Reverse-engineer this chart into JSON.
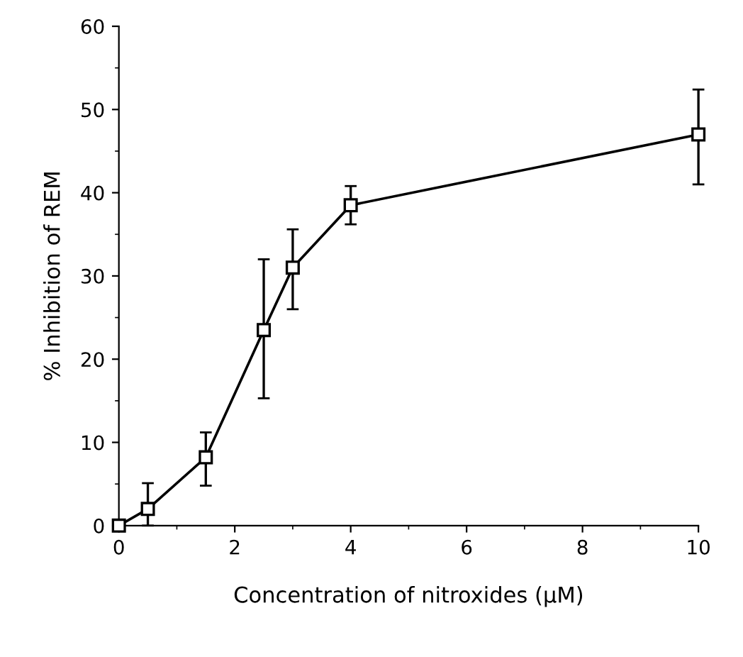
{
  "chart_data": {
    "type": "line",
    "xlabel": "Concentration of nitroxides (μM)",
    "ylabel": "% Inhibition of REM",
    "x": [
      0,
      0.5,
      1.5,
      2.5,
      3,
      4,
      10
    ],
    "series": [
      {
        "color": "#000000",
        "values": [
          0,
          2,
          8.2,
          23.5,
          31,
          38.5,
          47
        ],
        "errors": [
          null,
          [
            0,
            5.1
          ],
          [
            4.8,
            11.2
          ],
          [
            15.3,
            32
          ],
          [
            26,
            35.6
          ],
          [
            36.2,
            40.8
          ],
          [
            41,
            52.4
          ]
        ]
      }
    ],
    "xlim": [
      0,
      10
    ],
    "ylim": [
      0,
      60
    ],
    "xticks": [
      0,
      {
        "value": 1,
        "label": null
      },
      2,
      {
        "value": 3,
        "label": null
      },
      4,
      {
        "value": 5,
        "label": null
      },
      6,
      {
        "value": 7,
        "label": null
      },
      8,
      {
        "value": 9,
        "label": null
      },
      10
    ],
    "yticks": [
      0,
      {
        "value": 5,
        "label": null
      },
      10,
      {
        "value": 15,
        "label": null
      },
      20,
      {
        "value": 25,
        "label": null
      },
      30,
      {
        "value": 35,
        "label": null
      },
      40,
      {
        "value": 45,
        "label": null
      },
      50,
      {
        "value": 55,
        "label": null
      },
      60
    ],
    "marker": "square",
    "line_style": "solid",
    "grid": false
  }
}
